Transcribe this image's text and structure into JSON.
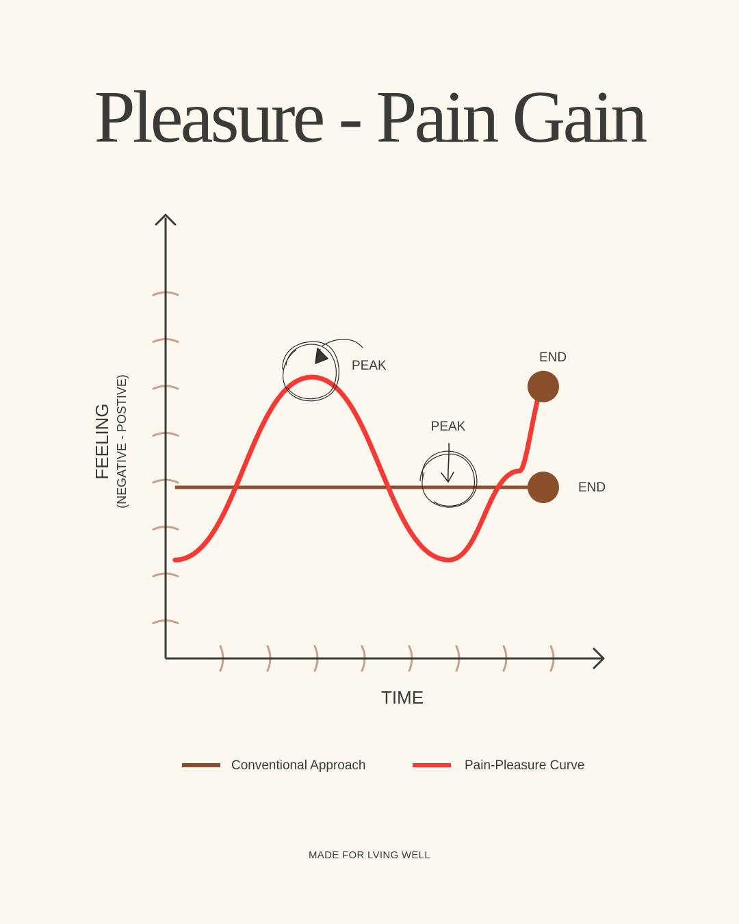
{
  "title": "Pleasure - Pain Gain",
  "footer": "MADE FOR LVING WELL",
  "colors": {
    "background": "#fdf8ef",
    "axis": "#3a3a38",
    "tick": "#c9a08a",
    "conventional": "#8b4f2c",
    "curve": "#f43a33"
  },
  "chart_data": {
    "type": "line",
    "title": "Pleasure - Pain Gain",
    "xlabel": "TIME",
    "ylabel": "FEELING",
    "ylabel_sub": "(NEGATIVE - POSTIVE)",
    "xlim": [
      0,
      9
    ],
    "ylim": [
      0,
      9
    ],
    "x_ticks": [
      1,
      2,
      3,
      4,
      5,
      6,
      7,
      8
    ],
    "y_ticks": [
      1,
      2,
      3,
      4,
      5,
      6,
      7,
      8
    ],
    "grid": false,
    "legend_position": "bottom",
    "series": [
      {
        "name": "Conventional Approach",
        "color": "#8b4f2c",
        "x": [
          0.2,
          8
        ],
        "y": [
          3.65,
          3.65
        ],
        "end_marker": {
          "x": 8,
          "y": 3.65,
          "label": "END"
        }
      },
      {
        "name": "Pain-Pleasure Curve",
        "color": "#f43a33",
        "x": [
          0.2,
          3.1,
          6,
          7.5,
          8
        ],
        "y": [
          2.1,
          6.0,
          2.1,
          4.0,
          5.8
        ],
        "end_marker": {
          "x": 8,
          "y": 5.8,
          "label": "END"
        }
      }
    ],
    "annotations": [
      {
        "text": "PEAK",
        "x": 3.1,
        "y": 6.0
      },
      {
        "text": "PEAK",
        "x": 6,
        "y": 3.65
      }
    ]
  }
}
